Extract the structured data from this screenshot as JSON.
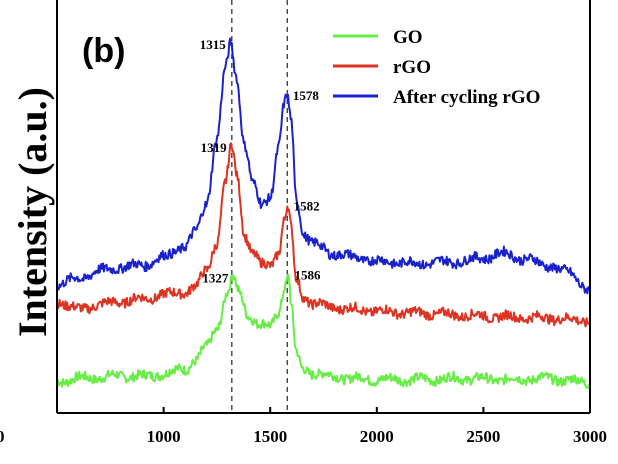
{
  "chart_data": {
    "type": "line",
    "panel_label": "(b)",
    "title": "",
    "xlabel": "",
    "ylabel": "Intensity (a.u.)",
    "xlim": [
      500,
      3000
    ],
    "x_ticks": [
      1000,
      1500,
      2000,
      2500,
      3000
    ],
    "partial_tick_label": "0",
    "grid": false,
    "legend_position": "top-right",
    "reference_lines_x": [
      1320,
      1580
    ],
    "series": [
      {
        "name": "GO",
        "color": "#66ee44",
        "points": [
          [
            500,
            0.3
          ],
          [
            600,
            0.6
          ],
          [
            700,
            0.7
          ],
          [
            800,
            0.9
          ],
          [
            900,
            0.8
          ],
          [
            1000,
            1.1
          ],
          [
            1100,
            1.6
          ],
          [
            1150,
            2.5
          ],
          [
            1200,
            3.8
          ],
          [
            1250,
            5.8
          ],
          [
            1300,
            9.6
          ],
          [
            1327,
            11.2
          ],
          [
            1350,
            9.6
          ],
          [
            1400,
            7.2
          ],
          [
            1450,
            6.2
          ],
          [
            1500,
            6.0
          ],
          [
            1540,
            7.6
          ],
          [
            1570,
            10.4
          ],
          [
            1586,
            11.3
          ],
          [
            1600,
            8.0
          ],
          [
            1620,
            3.4
          ],
          [
            1650,
            1.6
          ],
          [
            1700,
            1.2
          ],
          [
            1800,
            0.8
          ],
          [
            1900,
            0.6
          ],
          [
            2000,
            0.5
          ],
          [
            2200,
            0.5
          ],
          [
            2400,
            0.6
          ],
          [
            2600,
            0.5
          ],
          [
            2800,
            0.6
          ],
          [
            2900,
            0.4
          ],
          [
            3000,
            0.2
          ]
        ]
      },
      {
        "name": "rGO",
        "color": "#dd3322",
        "points": [
          [
            500,
            8.6
          ],
          [
            600,
            7.8
          ],
          [
            700,
            8.3
          ],
          [
            800,
            8.6
          ],
          [
            900,
            8.9
          ],
          [
            1000,
            9.3
          ],
          [
            1100,
            9.6
          ],
          [
            1150,
            10.2
          ],
          [
            1200,
            11.8
          ],
          [
            1250,
            14.8
          ],
          [
            1290,
            21.0
          ],
          [
            1319,
            24.8
          ],
          [
            1345,
            21.6
          ],
          [
            1380,
            15.6
          ],
          [
            1420,
            13.6
          ],
          [
            1460,
            12.4
          ],
          [
            1500,
            12.4
          ],
          [
            1540,
            13.8
          ],
          [
            1565,
            17.0
          ],
          [
            1582,
            18.5
          ],
          [
            1600,
            16.0
          ],
          [
            1620,
            11.0
          ],
          [
            1660,
            9.0
          ],
          [
            1700,
            8.4
          ],
          [
            1800,
            8.0
          ],
          [
            1900,
            7.8
          ],
          [
            2000,
            7.6
          ],
          [
            2200,
            7.4
          ],
          [
            2400,
            7.2
          ],
          [
            2600,
            7.0
          ],
          [
            2800,
            6.9
          ],
          [
            3000,
            6.6
          ]
        ]
      },
      {
        "name": "After cycling rGO",
        "color": "#1a22cc",
        "points": [
          [
            500,
            10.4
          ],
          [
            600,
            11.0
          ],
          [
            700,
            11.8
          ],
          [
            800,
            12.2
          ],
          [
            900,
            12.4
          ],
          [
            1000,
            13.2
          ],
          [
            1100,
            14.4
          ],
          [
            1150,
            15.8
          ],
          [
            1200,
            18.8
          ],
          [
            1250,
            25.6
          ],
          [
            1290,
            32.8
          ],
          [
            1315,
            35.5
          ],
          [
            1340,
            32.2
          ],
          [
            1380,
            25.0
          ],
          [
            1420,
            20.8
          ],
          [
            1460,
            18.6
          ],
          [
            1500,
            19.6
          ],
          [
            1540,
            24.8
          ],
          [
            1565,
            29.0
          ],
          [
            1578,
            30.0
          ],
          [
            1600,
            27.2
          ],
          [
            1620,
            19.6
          ],
          [
            1660,
            15.6
          ],
          [
            1700,
            14.6
          ],
          [
            1800,
            13.6
          ],
          [
            1900,
            13.2
          ],
          [
            2000,
            12.8
          ],
          [
            2200,
            12.6
          ],
          [
            2400,
            12.8
          ],
          [
            2500,
            13.2
          ],
          [
            2600,
            13.6
          ],
          [
            2700,
            13.0
          ],
          [
            2800,
            12.4
          ],
          [
            2900,
            11.6
          ],
          [
            3000,
            9.8
          ]
        ]
      }
    ],
    "peak_labels": [
      {
        "series": "After cycling rGO",
        "x": 1315,
        "text": "1315"
      },
      {
        "series": "After cycling rGO",
        "x": 1578,
        "text": "1578"
      },
      {
        "series": "rGO",
        "x": 1319,
        "text": "1319"
      },
      {
        "series": "rGO",
        "x": 1582,
        "text": "1582"
      },
      {
        "series": "GO",
        "x": 1327,
        "text": "1327"
      },
      {
        "series": "GO",
        "x": 1586,
        "text": "1586"
      }
    ]
  }
}
